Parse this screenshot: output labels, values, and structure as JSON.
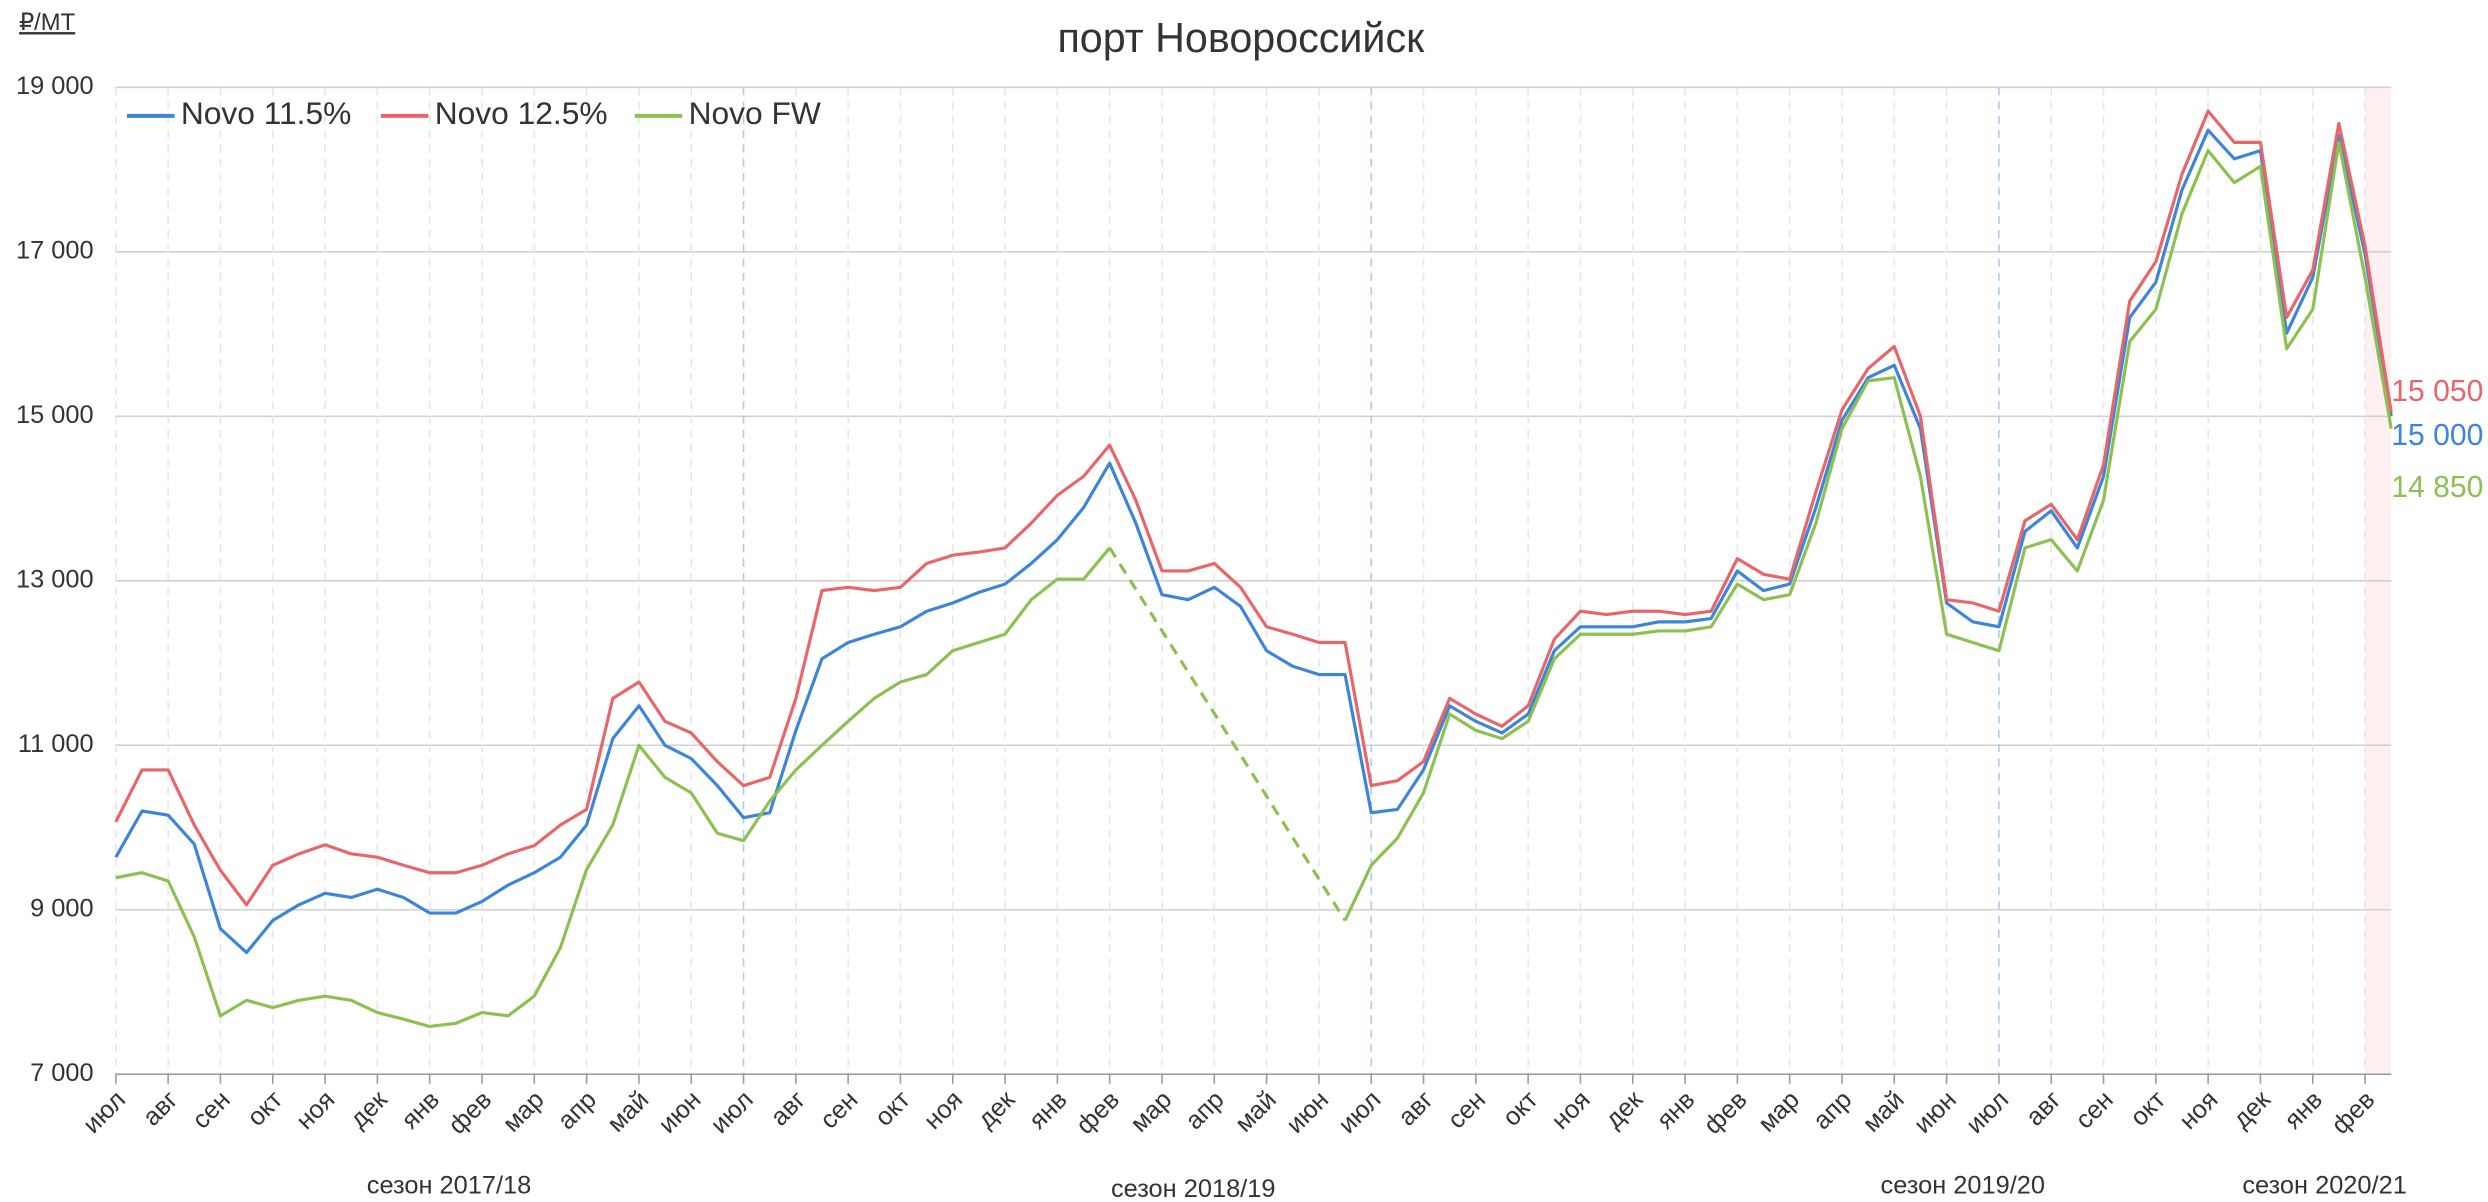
{
  "chart_data": {
    "type": "line",
    "title": "порт Новороссийск",
    "y_unit": "₽/MT",
    "seasons": [
      "сезон 2017/18",
      "сезон 2018/19",
      "сезон 2019/20",
      "сезон 2020/21"
    ],
    "x": [
      0,
      0.5,
      1,
      1.5,
      2,
      2.5,
      3,
      3.5,
      4,
      4.5,
      5,
      5.5,
      6,
      6.5,
      7,
      7.5,
      8,
      8.5,
      9,
      9.5,
      10,
      10.5,
      11,
      11.5,
      12,
      12.5,
      13,
      13.5,
      14,
      14.5,
      15,
      15.5,
      16,
      16.5,
      17,
      17.5,
      18,
      18.5,
      19,
      19.5,
      20,
      20.5,
      21,
      21.5,
      22,
      22.5,
      23,
      23.5,
      24,
      24.5,
      25,
      25.5,
      26,
      26.5,
      27,
      27.5,
      28,
      28.5,
      29,
      29.5,
      30,
      30.5,
      31,
      31.5,
      32,
      32.5,
      33,
      33.5,
      34,
      34.5,
      35,
      35.5,
      36,
      36.5,
      37,
      37.5,
      38,
      38.5,
      39,
      39.5,
      40,
      40.5,
      41,
      41.5,
      42,
      42.5,
      43,
      43.5
    ],
    "xlim": [
      0,
      43.5
    ],
    "xticks": [
      {
        "value": 0,
        "label": "июл"
      },
      {
        "value": 1,
        "label": "авг"
      },
      {
        "value": 2,
        "label": "сен"
      },
      {
        "value": 3,
        "label": "окт"
      },
      {
        "value": 4,
        "label": "ноя"
      },
      {
        "value": 5,
        "label": "дек"
      },
      {
        "value": 6,
        "label": "янв"
      },
      {
        "value": 7,
        "label": "фев"
      },
      {
        "value": 8,
        "label": "мар"
      },
      {
        "value": 9,
        "label": "апр"
      },
      {
        "value": 10,
        "label": "май"
      },
      {
        "value": 11,
        "label": "июн"
      },
      {
        "value": 12,
        "label": "июл"
      },
      {
        "value": 13,
        "label": "авг"
      },
      {
        "value": 14,
        "label": "сен"
      },
      {
        "value": 15,
        "label": "окт"
      },
      {
        "value": 16,
        "label": "ноя"
      },
      {
        "value": 17,
        "label": "дек"
      },
      {
        "value": 18,
        "label": "янв"
      },
      {
        "value": 19,
        "label": "фев"
      },
      {
        "value": 20,
        "label": "мар"
      },
      {
        "value": 21,
        "label": "апр"
      },
      {
        "value": 22,
        "label": "май"
      },
      {
        "value": 23,
        "label": "июн"
      },
      {
        "value": 24,
        "label": "июл"
      },
      {
        "value": 25,
        "label": "авг"
      },
      {
        "value": 26,
        "label": "сен"
      },
      {
        "value": 27,
        "label": "окт"
      },
      {
        "value": 28,
        "label": "ноя"
      },
      {
        "value": 29,
        "label": "дек"
      },
      {
        "value": 30,
        "label": "янв"
      },
      {
        "value": 31,
        "label": "фев"
      },
      {
        "value": 32,
        "label": "мар"
      },
      {
        "value": 33,
        "label": "апр"
      },
      {
        "value": 34,
        "label": "май"
      },
      {
        "value": 35,
        "label": "июн"
      },
      {
        "value": 36,
        "label": "июл"
      },
      {
        "value": 37,
        "label": "авг"
      },
      {
        "value": 38,
        "label": "сен"
      },
      {
        "value": 39,
        "label": "окт"
      },
      {
        "value": 40,
        "label": "ноя"
      },
      {
        "value": 41,
        "label": "дек"
      },
      {
        "value": 42,
        "label": "янв"
      },
      {
        "value": 43,
        "label": "фев"
      }
    ],
    "ylim": [
      7000,
      19000
    ],
    "yticks": [
      {
        "value": 7000,
        "label": "7 000"
      },
      {
        "value": 9000,
        "label": "9 000"
      },
      {
        "value": 11000,
        "label": "11 000"
      },
      {
        "value": 13000,
        "label": "13 000"
      },
      {
        "value": 15000,
        "label": "15 000"
      },
      {
        "value": 17000,
        "label": "17 000"
      },
      {
        "value": 19000,
        "label": "19 000"
      }
    ],
    "grid": true,
    "series": [
      {
        "name": "Novo 11.5%",
        "color": "#3d85d8",
        "values": [
          9640,
          10200,
          10150,
          9800,
          8770,
          8480,
          8870,
          9060,
          9200,
          9150,
          9250,
          9150,
          8960,
          8960,
          9100,
          9300,
          9450,
          9640,
          10030,
          11080,
          11480,
          11000,
          10840,
          10510,
          10120,
          10180,
          11180,
          12050,
          12250,
          12350,
          12440,
          12630,
          12730,
          12860,
          12960,
          13210,
          13500,
          13890,
          14430,
          13700,
          12830,
          12770,
          12920,
          12690,
          12150,
          11960,
          11860,
          11860,
          10180,
          10220,
          10700,
          11480,
          11290,
          11150,
          11380,
          12150,
          12440,
          12440,
          12440,
          12500,
          12500,
          12540,
          13120,
          12880,
          12960,
          13890,
          14950,
          15470,
          15620,
          14850,
          12730,
          12500,
          12440,
          13600,
          13850,
          13400,
          14270,
          16200,
          16630,
          17750,
          18480,
          18130,
          18230,
          16010,
          16690,
          18420,
          16970,
          15000
        ],
        "value_labels": [
          null,
          null,
          null,
          null,
          null,
          null,
          null,
          null,
          null,
          null,
          null,
          null,
          null,
          null,
          null,
          null,
          null,
          null,
          null,
          null,
          null,
          null,
          null,
          null,
          null,
          null,
          null,
          null,
          null,
          null,
          null,
          null,
          null,
          null,
          null,
          null,
          null,
          null,
          null,
          null,
          null,
          null,
          null,
          null,
          null,
          null,
          null,
          null,
          null,
          null,
          null,
          null,
          null,
          null,
          null,
          null,
          null,
          null,
          null,
          null,
          null,
          null,
          null,
          null,
          null,
          null,
          null,
          null,
          null,
          null,
          null,
          null,
          null,
          null,
          null,
          null,
          null,
          null,
          null,
          null,
          null,
          null,
          null,
          null,
          null,
          null,
          null,
          "15 000"
        ]
      },
      {
        "name": "Novo 12.5%",
        "color": "#e8666a",
        "values": [
          10070,
          10700,
          10700,
          10030,
          9480,
          9060,
          9540,
          9680,
          9790,
          9680,
          9640,
          9540,
          9450,
          9450,
          9540,
          9680,
          9780,
          10030,
          10220,
          11570,
          11770,
          11290,
          11150,
          10800,
          10510,
          10610,
          11570,
          12880,
          12920,
          12880,
          12920,
          13210,
          13310,
          13350,
          13400,
          13700,
          14040,
          14270,
          14650,
          13980,
          13120,
          13120,
          13210,
          12920,
          12440,
          12350,
          12250,
          12250,
          10510,
          10570,
          10800,
          11570,
          11380,
          11230,
          11480,
          12290,
          12630,
          12590,
          12630,
          12630,
          12590,
          12630,
          13270,
          13080,
          13020,
          14080,
          15080,
          15580,
          15850,
          15000,
          12770,
          12730,
          12630,
          13730,
          13930,
          13500,
          14410,
          16400,
          16880,
          17940,
          18710,
          18330,
          18330,
          16200,
          16780,
          18560,
          17070,
          15050
        ],
        "value_labels": [
          null,
          null,
          null,
          null,
          null,
          null,
          null,
          null,
          null,
          null,
          null,
          null,
          null,
          null,
          null,
          null,
          null,
          null,
          null,
          null,
          null,
          null,
          null,
          null,
          null,
          null,
          null,
          null,
          null,
          null,
          null,
          null,
          null,
          null,
          null,
          null,
          null,
          null,
          null,
          null,
          null,
          null,
          null,
          null,
          null,
          null,
          null,
          null,
          null,
          null,
          null,
          null,
          null,
          null,
          null,
          null,
          null,
          null,
          null,
          null,
          null,
          null,
          null,
          null,
          null,
          null,
          null,
          null,
          null,
          null,
          null,
          null,
          null,
          null,
          null,
          null,
          null,
          null,
          null,
          null,
          null,
          null,
          null,
          null,
          null,
          null,
          null,
          "15 050"
        ]
      },
      {
        "name": "Novo FW",
        "color": "#8cc152",
        "values": [
          9390,
          9450,
          9350,
          8670,
          7710,
          7900,
          7810,
          7900,
          7950,
          7900,
          7750,
          7670,
          7580,
          7620,
          7750,
          7710,
          7950,
          8540,
          9490,
          10030,
          11000,
          10610,
          10420,
          9930,
          9840,
          10320,
          10700,
          11000,
          11290,
          11570,
          11770,
          11860,
          12150,
          12250,
          12350,
          12770,
          13020,
          13020,
          13400,
          null,
          null,
          null,
          null,
          null,
          null,
          null,
          null,
          8870,
          9540,
          9870,
          10420,
          11380,
          11180,
          11080,
          11290,
          12050,
          12350,
          12350,
          12350,
          12390,
          12390,
          12440,
          12960,
          12770,
          12830,
          13700,
          14850,
          15430,
          15470,
          14270,
          12350,
          12250,
          12150,
          13400,
          13500,
          13120,
          13980,
          15910,
          16300,
          17460,
          18230,
          17840,
          18040,
          15820,
          16300,
          18330,
          16690,
          14850
        ],
        "value_labels": [
          null,
          null,
          null,
          null,
          null,
          null,
          null,
          null,
          null,
          null,
          null,
          null,
          null,
          null,
          null,
          null,
          null,
          null,
          null,
          null,
          null,
          null,
          null,
          null,
          null,
          null,
          null,
          null,
          null,
          null,
          null,
          null,
          null,
          null,
          null,
          null,
          null,
          null,
          null,
          null,
          null,
          null,
          null,
          null,
          null,
          null,
          null,
          null,
          null,
          null,
          null,
          null,
          null,
          null,
          null,
          null,
          null,
          null,
          null,
          null,
          null,
          null,
          null,
          null,
          null,
          null,
          null,
          null,
          null,
          null,
          null,
          null,
          null,
          null,
          null,
          null,
          null,
          null,
          null,
          null,
          null,
          null,
          null,
          null,
          null,
          null,
          null,
          "14 850"
        ]
      }
    ]
  }
}
